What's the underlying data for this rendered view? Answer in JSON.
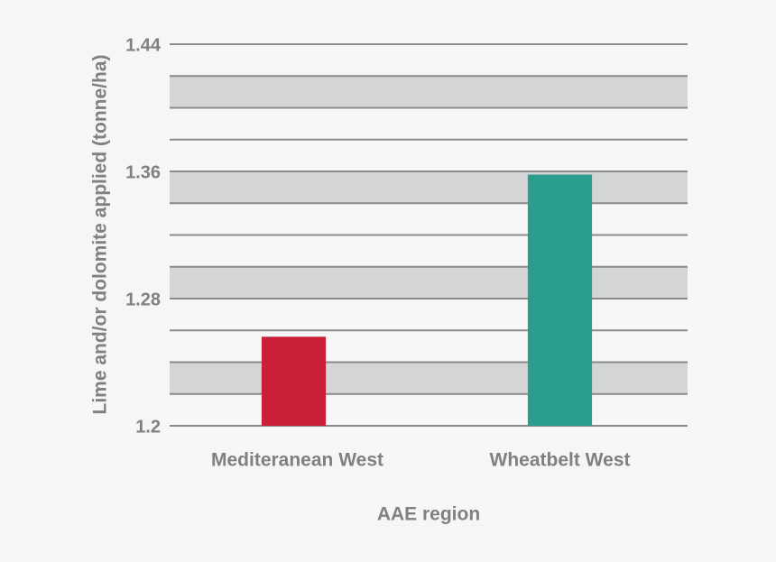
{
  "chart_data": {
    "type": "bar",
    "x_label": "AAE region",
    "y_label": "Lime and/or dolomite applied (tonne/ha)",
    "categories": [
      "Mediteranean West",
      "Wheatbelt West"
    ],
    "values": [
      1.256,
      1.358
    ],
    "colors": [
      "#c91f37",
      "#2a9d8f"
    ],
    "ylim": [
      1.2,
      1.44
    ],
    "yticks": [
      1.2,
      1.28,
      1.36,
      1.44
    ],
    "gridlines": [
      1.2,
      1.22,
      1.24,
      1.26,
      1.28,
      1.3,
      1.32,
      1.34,
      1.36,
      1.38,
      1.4,
      1.42,
      1.44
    ],
    "banded": true,
    "grid": true
  }
}
